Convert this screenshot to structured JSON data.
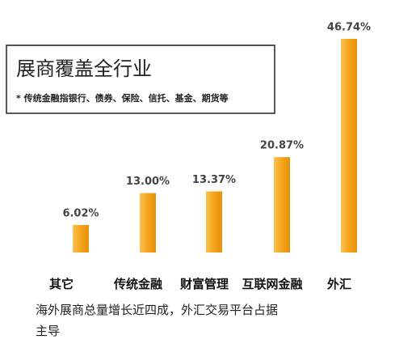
{
  "chart_data": {
    "type": "bar",
    "title": "展商覆盖全行业",
    "subtitle": "* 传统金融指银行、债券、保险、信托、基金、期货等",
    "categories": [
      "其它",
      "传统金融",
      "财富管理",
      "互联网金融",
      "外汇"
    ],
    "values": [
      6.02,
      13.0,
      13.37,
      20.87,
      46.74
    ],
    "value_labels": [
      "6.02%",
      "13.00%",
      "13.37%",
      "20.87%",
      "46.74%"
    ],
    "color": "#f5a41c",
    "caption_lines": [
      "海外展商总量增长近四成，外汇交易平台占据",
      "主导"
    ]
  }
}
